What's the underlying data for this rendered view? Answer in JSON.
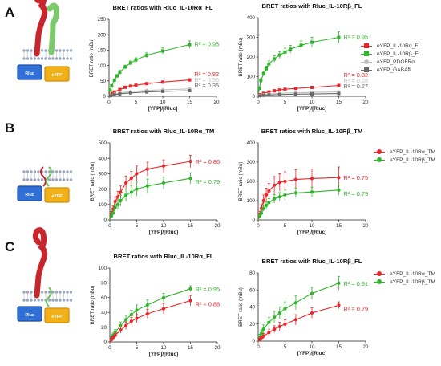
{
  "panels": [
    {
      "letter": "A",
      "legend": [
        "eYFP_IL-10Rα_FL",
        "eYFP_IL-10Rβ_FL",
        "eYFP_PDGFRα",
        "eYFP_GABA"
      ]
    },
    {
      "letter": "B",
      "legend": [
        "eYFP_IL-10Rα_TM",
        "eYFP_IL-10Rβ_TM"
      ]
    },
    {
      "letter": "C",
      "legend": [
        "eYFP_IL-10Rα_TM",
        "eYFP_IL-10Rβ_TM"
      ]
    }
  ],
  "series_colors": {
    "eYFP_IL-10Rα_FL": "#e8262a",
    "eYFP_IL-10Rβ_FL": "#2fb52a",
    "eYFP_PDGFRα": "#c0c0c0",
    "eYFP_GABA": "#6a6a6a",
    "eYFP_IL-10Rα_TM": "#e8262a",
    "eYFP_IL-10Rβ_TM": "#2fb52a"
  },
  "diagram": {
    "left_label": "Rluc",
    "right_label": "eYFP"
  },
  "chart_data": [
    {
      "type": "scatter",
      "panel": "A",
      "title": "BRET ratios with Rluc_IL-10Rα_FL",
      "xlabel": "[YFP]/[Rluc]",
      "ylabel": "BRET ratio (mBu)",
      "xlim": [
        0,
        20
      ],
      "ylim": [
        0,
        250
      ],
      "xticks": [
        0,
        5,
        10,
        15,
        20
      ],
      "yticks": [
        0,
        50,
        100,
        150,
        200,
        250
      ],
      "series": [
        {
          "name": "eYFP_IL-10Rβ_FL",
          "x": [
            0.2,
            0.5,
            1,
            1.5,
            2,
            3,
            4,
            5,
            7,
            10,
            15
          ],
          "y": [
            20,
            34,
            52,
            66,
            78,
            95,
            108,
            118,
            133,
            147,
            168
          ],
          "err": [
            3,
            4,
            5,
            5,
            6,
            6,
            7,
            7,
            8,
            10,
            12
          ],
          "r2": "R² = 0.95"
        },
        {
          "name": "eYFP_IL-10Rα_FL",
          "x": [
            0.3,
            0.6,
            1,
            2,
            3,
            4,
            5,
            7,
            10,
            15
          ],
          "y": [
            4,
            9,
            14,
            22,
            29,
            33,
            36,
            41,
            46,
            53
          ],
          "err": [
            1,
            1,
            2,
            2,
            3,
            3,
            3,
            3,
            4,
            4
          ],
          "r2": "R² = 0.82"
        },
        {
          "name": "eYFP_PDGFRα",
          "x": [
            0.3,
            1,
            2,
            4,
            7,
            10,
            15
          ],
          "y": [
            3,
            7,
            11,
            15,
            19,
            21,
            24
          ],
          "err": [
            1,
            1,
            1,
            2,
            2,
            2,
            3
          ],
          "r2": "R² = 0.56"
        },
        {
          "name": "eYFP_GABA",
          "x": [
            0.3,
            1,
            2,
            4,
            7,
            10,
            15
          ],
          "y": [
            2,
            5,
            8,
            11,
            14,
            16,
            18
          ],
          "err": [
            1,
            1,
            1,
            1,
            2,
            2,
            2
          ],
          "r2": "R² = 0.35"
        }
      ]
    },
    {
      "type": "scatter",
      "panel": "A",
      "title": "BRET ratios with Rluc_IL-10Rβ_FL",
      "xlabel": "[YFP]/[Rluc]",
      "ylabel": "BRET ratio (mBu)",
      "xlim": [
        0,
        20
      ],
      "ylim": [
        0,
        400
      ],
      "xticks": [
        0,
        5,
        10,
        15,
        20
      ],
      "yticks": [
        0,
        100,
        200,
        300,
        400
      ],
      "series": [
        {
          "name": "eYFP_IL-10Rβ_FL",
          "x": [
            0.2,
            0.5,
            1,
            1.5,
            2,
            3,
            4,
            5,
            6,
            8,
            10,
            15
          ],
          "y": [
            40,
            80,
            115,
            140,
            165,
            190,
            210,
            225,
            240,
            260,
            275,
            300
          ],
          "err": [
            8,
            10,
            12,
            14,
            15,
            17,
            18,
            20,
            20,
            22,
            25,
            28
          ],
          "r2": "R² = 0.95"
        },
        {
          "name": "eYFP_IL-10Rα_FL",
          "x": [
            0.3,
            1,
            2,
            3,
            4,
            5,
            7,
            10,
            15
          ],
          "y": [
            8,
            15,
            22,
            28,
            32,
            36,
            40,
            45,
            55
          ],
          "err": [
            2,
            3,
            3,
            4,
            4,
            4,
            5,
            5,
            6
          ],
          "r2": "R² = 0.82"
        },
        {
          "name": "eYFP_PDGFRα",
          "x": [
            0.3,
            1,
            2,
            4,
            7,
            10,
            15
          ],
          "y": [
            5,
            8,
            12,
            15,
            18,
            20,
            22
          ],
          "err": [
            1,
            1,
            2,
            2,
            2,
            2,
            3
          ],
          "r2": "R² = 0.28"
        },
        {
          "name": "eYFP_GABA",
          "x": [
            0.3,
            1,
            2,
            4,
            7,
            10,
            15
          ],
          "y": [
            3,
            5,
            7,
            9,
            11,
            12,
            14
          ],
          "err": [
            1,
            1,
            1,
            1,
            1,
            1,
            2
          ],
          "r2": "R² = 0.27"
        }
      ]
    },
    {
      "type": "scatter",
      "panel": "B",
      "title": "BRET ratios with Rluc_IL-10Rα_TM",
      "xlabel": "[YFP]/[Rluc]",
      "ylabel": "BRET ratio (mBu)",
      "xlim": [
        0,
        20
      ],
      "ylim": [
        0,
        500
      ],
      "xticks": [
        0,
        5,
        10,
        15,
        20
      ],
      "yticks": [
        0,
        100,
        200,
        300,
        400,
        500
      ],
      "series": [
        {
          "name": "eYFP_IL-10Rα_TM",
          "x": [
            0.3,
            0.6,
            1,
            1.5,
            2,
            3,
            4,
            5,
            7,
            10,
            15
          ],
          "y": [
            40,
            70,
            120,
            150,
            180,
            240,
            270,
            300,
            330,
            350,
            380
          ],
          "err": [
            15,
            20,
            30,
            35,
            40,
            45,
            45,
            50,
            45,
            40,
            40
          ],
          "r2": "R² = 0.86"
        },
        {
          "name": "eYFP_IL-10Rβ_TM",
          "x": [
            0.3,
            0.6,
            1,
            1.5,
            2,
            3,
            4,
            5,
            7,
            10,
            15
          ],
          "y": [
            25,
            45,
            80,
            100,
            125,
            160,
            180,
            200,
            220,
            240,
            270
          ],
          "err": [
            10,
            15,
            25,
            30,
            35,
            40,
            40,
            45,
            45,
            40,
            35
          ],
          "r2": "R² = 0.79"
        }
      ]
    },
    {
      "type": "scatter",
      "panel": "B",
      "title": "BRET ratios with Rluc_IL-10Rβ_TM",
      "xlabel": "[YFP]/[Rluc]",
      "ylabel": "BRET ratio (mBu)",
      "xlim": [
        0,
        20
      ],
      "ylim": [
        0,
        400
      ],
      "xticks": [
        0,
        5,
        10,
        15,
        20
      ],
      "yticks": [
        0,
        100,
        200,
        300,
        400
      ],
      "series": [
        {
          "name": "eYFP_IL-10Rα_TM",
          "x": [
            0.3,
            0.6,
            1,
            1.5,
            2,
            3,
            4,
            5,
            7,
            10,
            15
          ],
          "y": [
            30,
            60,
            100,
            130,
            150,
            180,
            195,
            200,
            210,
            215,
            220
          ],
          "err": [
            15,
            20,
            30,
            35,
            40,
            45,
            45,
            50,
            50,
            50,
            55
          ],
          "r2": "R² = 0.75"
        },
        {
          "name": "eYFP_IL-10Rβ_TM",
          "x": [
            0.3,
            0.6,
            1,
            1.5,
            2,
            3,
            4,
            5,
            7,
            10,
            15
          ],
          "y": [
            20,
            35,
            60,
            75,
            90,
            110,
            120,
            130,
            140,
            145,
            155
          ],
          "err": [
            8,
            10,
            15,
            18,
            20,
            22,
            22,
            25,
            25,
            25,
            25
          ],
          "r2": "R² = 0.79"
        }
      ]
    },
    {
      "type": "scatter",
      "panel": "C",
      "title": "BRET ratios with Rluc_IL-10Rα_FL",
      "xlabel": "[YFP]/[Rluc]",
      "ylabel": "BRET ratio (mBu)",
      "xlim": [
        0,
        20
      ],
      "ylim": [
        0,
        100
      ],
      "xticks": [
        0,
        5,
        10,
        15,
        20
      ],
      "yticks": [
        0,
        20,
        40,
        60,
        80,
        100
      ],
      "series": [
        {
          "name": "eYFP_IL-10Rβ_TM",
          "x": [
            0.3,
            0.6,
            1,
            2,
            3,
            4,
            5,
            7,
            10,
            15
          ],
          "y": [
            5,
            9,
            13,
            22,
            30,
            37,
            43,
            50,
            60,
            72
          ],
          "err": [
            2,
            3,
            4,
            5,
            6,
            6,
            7,
            7,
            6,
            4
          ],
          "r2": "R² = 0.95"
        },
        {
          "name": "eYFP_IL-10Rα_TM",
          "x": [
            0.3,
            0.6,
            1,
            2,
            3,
            4,
            5,
            7,
            10,
            15
          ],
          "y": [
            3,
            6,
            9,
            16,
            22,
            28,
            32,
            38,
            45,
            56
          ],
          "err": [
            2,
            2,
            3,
            4,
            5,
            5,
            6,
            6,
            7,
            7
          ],
          "r2": "R² = 0.88"
        }
      ]
    },
    {
      "type": "scatter",
      "panel": "C",
      "title": "BRET ratios with Rluc_IL-10Rβ_FL",
      "xlabel": "[YFP]/[Rluc]",
      "ylabel": "BRET ratio (mBu)",
      "xlim": [
        0,
        20
      ],
      "ylim": [
        0,
        80
      ],
      "xticks": [
        0,
        5,
        10,
        15,
        20
      ],
      "yticks": [
        0,
        20,
        40,
        60,
        80
      ],
      "series": [
        {
          "name": "eYFP_IL-10Rβ_TM",
          "x": [
            0.3,
            0.6,
            1,
            2,
            3,
            4,
            5,
            7,
            10,
            15
          ],
          "y": [
            5,
            9,
            14,
            22,
            28,
            33,
            38,
            45,
            56,
            68
          ],
          "err": [
            3,
            4,
            5,
            6,
            7,
            7,
            8,
            8,
            7,
            8
          ],
          "r2": "R² = 0.91"
        },
        {
          "name": "eYFP_IL-10Rα_TM",
          "x": [
            0.3,
            0.6,
            1,
            2,
            3,
            4,
            5,
            7,
            10,
            15
          ],
          "y": [
            2,
            4,
            6,
            10,
            14,
            17,
            20,
            25,
            33,
            42
          ],
          "err": [
            2,
            2,
            3,
            4,
            4,
            5,
            5,
            6,
            6,
            4
          ],
          "r2": "R² = 0.79"
        }
      ]
    }
  ]
}
